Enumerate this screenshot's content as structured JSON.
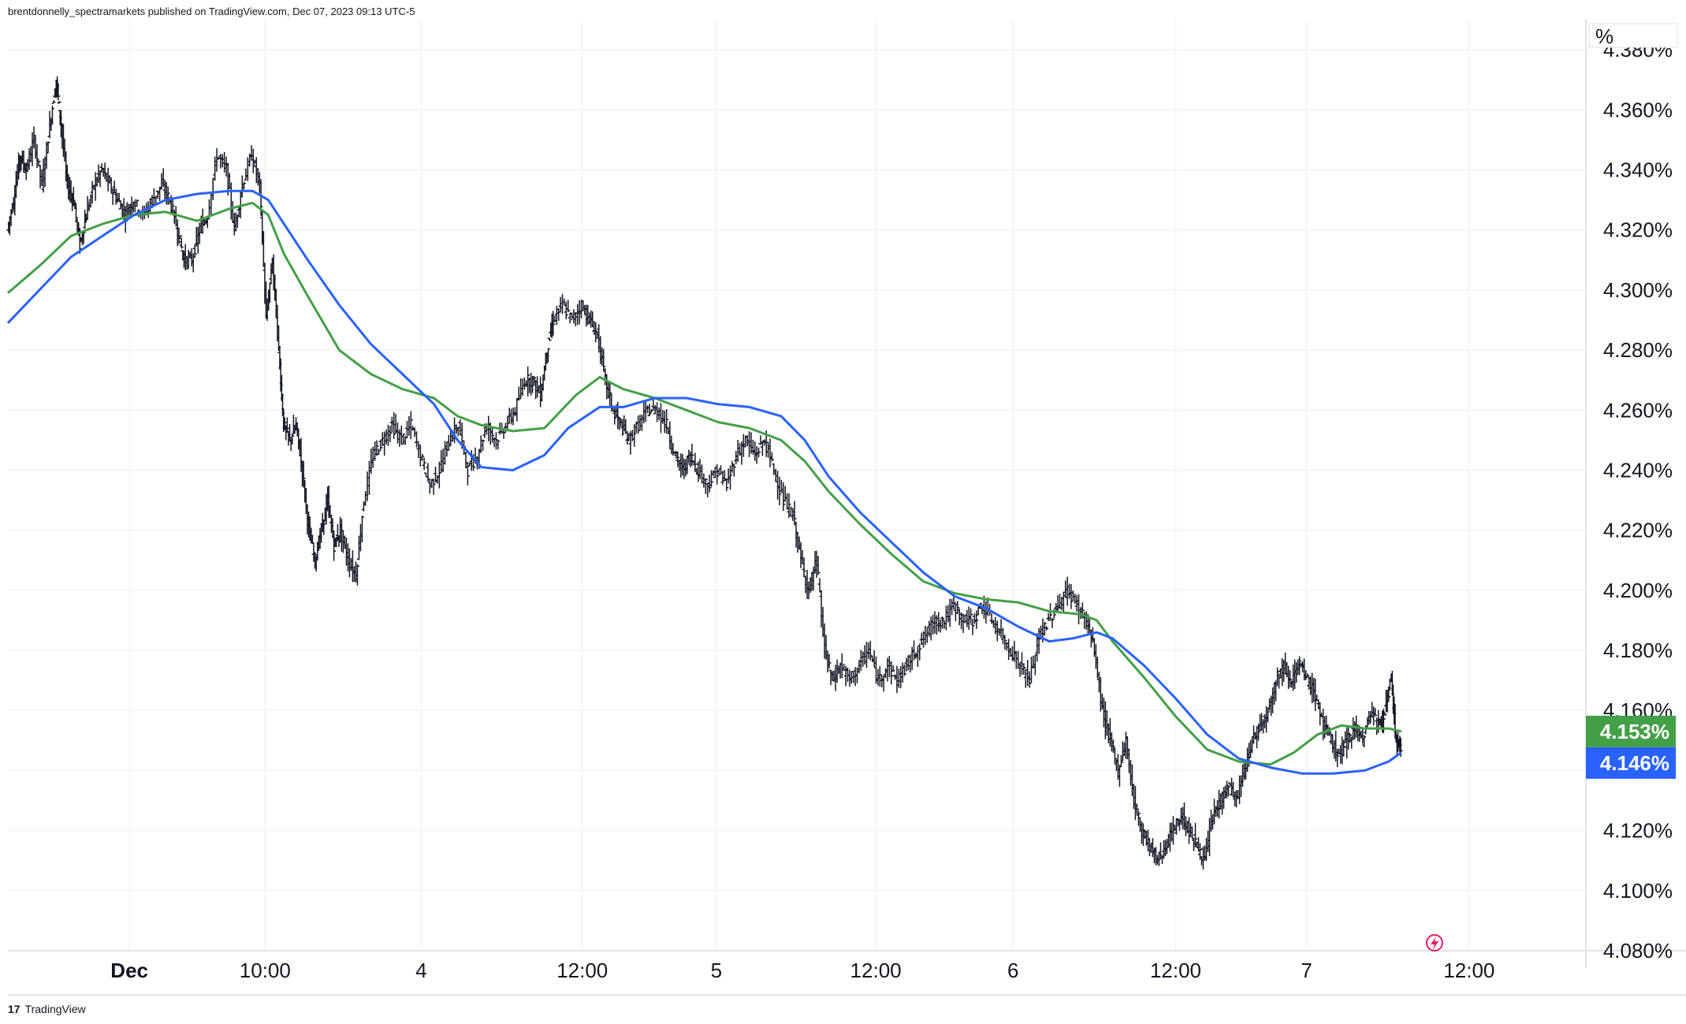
{
  "header": {
    "publisher_line": "brentdonnelly_spectramarkets published on TradingView.com, Dec 07, 2023 09:13 UTC-5"
  },
  "footer": {
    "watermark": "TradingView",
    "logo_glyph": "17"
  },
  "scale_unit": "%",
  "colors": {
    "green_ma": "#43a047",
    "blue_ma": "#2962ff",
    "candles": "#131722",
    "grid": "#f0f3fa",
    "green_badge": "#43a047",
    "blue_badge": "#2962ff",
    "flash_icon": "#e91e63"
  },
  "chart_data": {
    "type": "line",
    "y_axis": {
      "range": [
        4.08,
        4.39
      ],
      "ticks": [
        4.08,
        4.1,
        4.12,
        4.14,
        4.16,
        4.18,
        4.2,
        4.22,
        4.24,
        4.26,
        4.28,
        4.3,
        4.32,
        4.34,
        4.36,
        4.38
      ],
      "tick_labels": [
        "4.080%",
        "4.100%",
        "4.120%",
        "4.140%",
        "4.160%",
        "4.180%",
        "4.200%",
        "4.220%",
        "4.240%",
        "4.260%",
        "4.280%",
        "4.300%",
        "4.320%",
        "4.340%",
        "4.360%",
        "4.380%"
      ],
      "position": "right"
    },
    "x_axis": {
      "range": [
        0,
        100
      ],
      "ticks": [
        {
          "x": 7.7,
          "label": "Dec",
          "bold": true
        },
        {
          "x": 16.3,
          "label": "10:00"
        },
        {
          "x": 26.2,
          "label": "4"
        },
        {
          "x": 36.4,
          "label": "12:00"
        },
        {
          "x": 44.9,
          "label": "5"
        },
        {
          "x": 55.0,
          "label": "12:00"
        },
        {
          "x": 63.7,
          "label": "6"
        },
        {
          "x": 74.0,
          "label": "12:00"
        },
        {
          "x": 82.3,
          "label": "7"
        },
        {
          "x": 92.6,
          "label": "12:00"
        }
      ]
    },
    "grid": true,
    "price": [
      [
        0,
        4.32
      ],
      [
        0.4,
        4.33
      ],
      [
        0.8,
        4.345
      ],
      [
        1.2,
        4.34
      ],
      [
        1.7,
        4.35
      ],
      [
        2.2,
        4.335
      ],
      [
        2.7,
        4.355
      ],
      [
        3.1,
        4.37
      ],
      [
        3.4,
        4.355
      ],
      [
        3.8,
        4.335
      ],
      [
        4.2,
        4.33
      ],
      [
        4.6,
        4.315
      ],
      [
        5.0,
        4.325
      ],
      [
        5.5,
        4.335
      ],
      [
        6.0,
        4.34
      ],
      [
        6.5,
        4.335
      ],
      [
        7.0,
        4.33
      ],
      [
        7.5,
        4.325
      ],
      [
        8.0,
        4.33
      ],
      [
        8.6,
        4.325
      ],
      [
        9.2,
        4.33
      ],
      [
        9.8,
        4.335
      ],
      [
        10.3,
        4.33
      ],
      [
        10.8,
        4.32
      ],
      [
        11.2,
        4.31
      ],
      [
        11.7,
        4.31
      ],
      [
        12.2,
        4.32
      ],
      [
        12.7,
        4.325
      ],
      [
        13.3,
        4.345
      ],
      [
        13.9,
        4.34
      ],
      [
        14.4,
        4.32
      ],
      [
        14.9,
        4.335
      ],
      [
        15.5,
        4.345
      ],
      [
        16.0,
        4.335
      ],
      [
        16.4,
        4.29
      ],
      [
        16.8,
        4.31
      ],
      [
        17.2,
        4.28
      ],
      [
        17.5,
        4.255
      ],
      [
        17.9,
        4.25
      ],
      [
        18.3,
        4.255
      ],
      [
        18.7,
        4.24
      ],
      [
        19.1,
        4.22
      ],
      [
        19.5,
        4.21
      ],
      [
        19.9,
        4.22
      ],
      [
        20.3,
        4.23
      ],
      [
        20.7,
        4.215
      ],
      [
        21.1,
        4.22
      ],
      [
        21.6,
        4.21
      ],
      [
        22.1,
        4.205
      ],
      [
        22.6,
        4.23
      ],
      [
        23.2,
        4.245
      ],
      [
        23.8,
        4.25
      ],
      [
        24.4,
        4.255
      ],
      [
        25.0,
        4.25
      ],
      [
        25.6,
        4.255
      ],
      [
        26.2,
        4.245
      ],
      [
        26.8,
        4.235
      ],
      [
        27.4,
        4.24
      ],
      [
        28.0,
        4.25
      ],
      [
        28.6,
        4.255
      ],
      [
        29.2,
        4.24
      ],
      [
        29.8,
        4.245
      ],
      [
        30.4,
        4.255
      ],
      [
        31.0,
        4.25
      ],
      [
        31.6,
        4.255
      ],
      [
        32.2,
        4.26
      ],
      [
        32.8,
        4.27
      ],
      [
        33.3,
        4.27
      ],
      [
        33.8,
        4.265
      ],
      [
        34.2,
        4.28
      ],
      [
        34.6,
        4.29
      ],
      [
        35.2,
        4.295
      ],
      [
        35.8,
        4.29
      ],
      [
        36.4,
        4.295
      ],
      [
        36.9,
        4.29
      ],
      [
        37.4,
        4.285
      ],
      [
        37.9,
        4.27
      ],
      [
        38.4,
        4.26
      ],
      [
        38.9,
        4.255
      ],
      [
        39.4,
        4.25
      ],
      [
        40.0,
        4.255
      ],
      [
        40.6,
        4.26
      ],
      [
        41.2,
        4.26
      ],
      [
        41.8,
        4.255
      ],
      [
        42.3,
        4.245
      ],
      [
        42.8,
        4.24
      ],
      [
        43.3,
        4.245
      ],
      [
        43.8,
        4.24
      ],
      [
        44.4,
        4.235
      ],
      [
        45.0,
        4.24
      ],
      [
        45.6,
        4.235
      ],
      [
        46.2,
        4.245
      ],
      [
        46.8,
        4.25
      ],
      [
        47.4,
        4.245
      ],
      [
        48.0,
        4.25
      ],
      [
        48.6,
        4.24
      ],
      [
        49.2,
        4.23
      ],
      [
        49.8,
        4.225
      ],
      [
        50.3,
        4.21
      ],
      [
        50.8,
        4.2
      ],
      [
        51.3,
        4.21
      ],
      [
        51.8,
        4.18
      ],
      [
        52.3,
        4.17
      ],
      [
        52.8,
        4.175
      ],
      [
        53.4,
        4.17
      ],
      [
        54.0,
        4.175
      ],
      [
        54.6,
        4.18
      ],
      [
        55.2,
        4.17
      ],
      [
        55.8,
        4.175
      ],
      [
        56.4,
        4.17
      ],
      [
        57.0,
        4.175
      ],
      [
        57.6,
        4.18
      ],
      [
        58.2,
        4.185
      ],
      [
        58.8,
        4.19
      ],
      [
        59.4,
        4.19
      ],
      [
        60.0,
        4.195
      ],
      [
        60.6,
        4.19
      ],
      [
        61.2,
        4.19
      ],
      [
        61.8,
        4.195
      ],
      [
        62.4,
        4.19
      ],
      [
        63.0,
        4.185
      ],
      [
        63.6,
        4.18
      ],
      [
        64.2,
        4.175
      ],
      [
        64.8,
        4.17
      ],
      [
        65.4,
        4.185
      ],
      [
        66.0,
        4.19
      ],
      [
        66.6,
        4.195
      ],
      [
        67.2,
        4.2
      ],
      [
        67.8,
        4.195
      ],
      [
        68.4,
        4.19
      ],
      [
        68.9,
        4.18
      ],
      [
        69.4,
        4.16
      ],
      [
        69.9,
        4.15
      ],
      [
        70.4,
        4.14
      ],
      [
        70.9,
        4.15
      ],
      [
        71.4,
        4.13
      ],
      [
        71.9,
        4.12
      ],
      [
        72.4,
        4.115
      ],
      [
        72.9,
        4.11
      ],
      [
        73.4,
        4.115
      ],
      [
        73.9,
        4.12
      ],
      [
        74.4,
        4.125
      ],
      [
        74.9,
        4.12
      ],
      [
        75.4,
        4.115
      ],
      [
        75.9,
        4.11
      ],
      [
        76.4,
        4.125
      ],
      [
        76.9,
        4.13
      ],
      [
        77.4,
        4.135
      ],
      [
        77.9,
        4.13
      ],
      [
        78.4,
        4.14
      ],
      [
        78.9,
        4.15
      ],
      [
        79.4,
        4.155
      ],
      [
        79.9,
        4.16
      ],
      [
        80.4,
        4.17
      ],
      [
        80.9,
        4.175
      ],
      [
        81.4,
        4.17
      ],
      [
        81.9,
        4.175
      ],
      [
        82.4,
        4.17
      ],
      [
        82.9,
        4.165
      ],
      [
        83.4,
        4.155
      ],
      [
        83.9,
        4.15
      ],
      [
        84.4,
        4.145
      ],
      [
        84.9,
        4.15
      ],
      [
        85.4,
        4.155
      ],
      [
        85.9,
        4.15
      ],
      [
        86.4,
        4.16
      ],
      [
        86.9,
        4.155
      ],
      [
        87.3,
        4.16
      ],
      [
        87.7,
        4.17
      ],
      [
        88.0,
        4.15
      ],
      [
        88.3,
        4.146
      ]
    ],
    "series": [
      {
        "color": "#43a047",
        "values": [
          [
            0,
            4.299
          ],
          [
            2,
            4.308
          ],
          [
            4,
            4.318
          ],
          [
            6,
            4.322
          ],
          [
            8,
            4.325
          ],
          [
            10,
            4.326
          ],
          [
            12,
            4.323
          ],
          [
            14,
            4.327
          ],
          [
            15.5,
            4.329
          ],
          [
            16.5,
            4.325
          ],
          [
            17.5,
            4.312
          ],
          [
            19,
            4.298
          ],
          [
            21,
            4.28
          ],
          [
            23,
            4.272
          ],
          [
            25,
            4.267
          ],
          [
            27,
            4.264
          ],
          [
            28.5,
            4.258
          ],
          [
            30,
            4.255
          ],
          [
            32,
            4.253
          ],
          [
            34,
            4.254
          ],
          [
            36,
            4.265
          ],
          [
            37.5,
            4.271
          ],
          [
            39,
            4.267
          ],
          [
            41,
            4.264
          ],
          [
            43,
            4.26
          ],
          [
            45,
            4.256
          ],
          [
            47,
            4.254
          ],
          [
            49,
            4.25
          ],
          [
            50.5,
            4.243
          ],
          [
            52,
            4.233
          ],
          [
            54,
            4.222
          ],
          [
            56,
            4.212
          ],
          [
            58,
            4.203
          ],
          [
            60,
            4.199
          ],
          [
            62,
            4.197
          ],
          [
            64,
            4.196
          ],
          [
            66,
            4.193
          ],
          [
            68,
            4.192
          ],
          [
            69,
            4.19
          ],
          [
            70,
            4.183
          ],
          [
            72,
            4.171
          ],
          [
            74,
            4.158
          ],
          [
            76,
            4.147
          ],
          [
            78,
            4.143
          ],
          [
            80,
            4.142
          ],
          [
            81.5,
            4.146
          ],
          [
            83,
            4.152
          ],
          [
            84.5,
            4.155
          ],
          [
            86,
            4.154
          ],
          [
            87.5,
            4.154
          ],
          [
            88.3,
            4.153
          ]
        ]
      },
      {
        "color": "#2962ff",
        "values": [
          [
            0,
            4.289
          ],
          [
            2,
            4.3
          ],
          [
            4,
            4.311
          ],
          [
            6,
            4.318
          ],
          [
            8,
            4.325
          ],
          [
            10,
            4.33
          ],
          [
            12,
            4.332
          ],
          [
            14,
            4.333
          ],
          [
            15.5,
            4.333
          ],
          [
            16.5,
            4.33
          ],
          [
            17.5,
            4.322
          ],
          [
            19,
            4.31
          ],
          [
            21,
            4.295
          ],
          [
            23,
            4.282
          ],
          [
            25,
            4.272
          ],
          [
            27,
            4.262
          ],
          [
            28.5,
            4.25
          ],
          [
            30,
            4.241
          ],
          [
            32,
            4.24
          ],
          [
            34,
            4.245
          ],
          [
            35.5,
            4.254
          ],
          [
            37.5,
            4.261
          ],
          [
            39,
            4.261
          ],
          [
            41,
            4.264
          ],
          [
            43,
            4.264
          ],
          [
            45,
            4.262
          ],
          [
            47,
            4.261
          ],
          [
            49,
            4.258
          ],
          [
            50.5,
            4.25
          ],
          [
            52,
            4.238
          ],
          [
            54,
            4.226
          ],
          [
            56,
            4.216
          ],
          [
            58,
            4.206
          ],
          [
            60,
            4.198
          ],
          [
            62,
            4.194
          ],
          [
            64,
            4.188
          ],
          [
            66,
            4.183
          ],
          [
            67.5,
            4.184
          ],
          [
            69,
            4.186
          ],
          [
            70,
            4.184
          ],
          [
            72,
            4.175
          ],
          [
            74,
            4.164
          ],
          [
            76,
            4.152
          ],
          [
            78,
            4.144
          ],
          [
            80,
            4.141
          ],
          [
            82,
            4.139
          ],
          [
            84,
            4.139
          ],
          [
            86,
            4.14
          ],
          [
            87.5,
            4.143
          ],
          [
            88.3,
            4.146
          ]
        ]
      }
    ],
    "last_values": [
      {
        "label": "4.153%",
        "value": 4.153,
        "color": "#43a047"
      },
      {
        "label": "4.146%",
        "value": 4.146,
        "color": "#2962ff"
      }
    ]
  }
}
